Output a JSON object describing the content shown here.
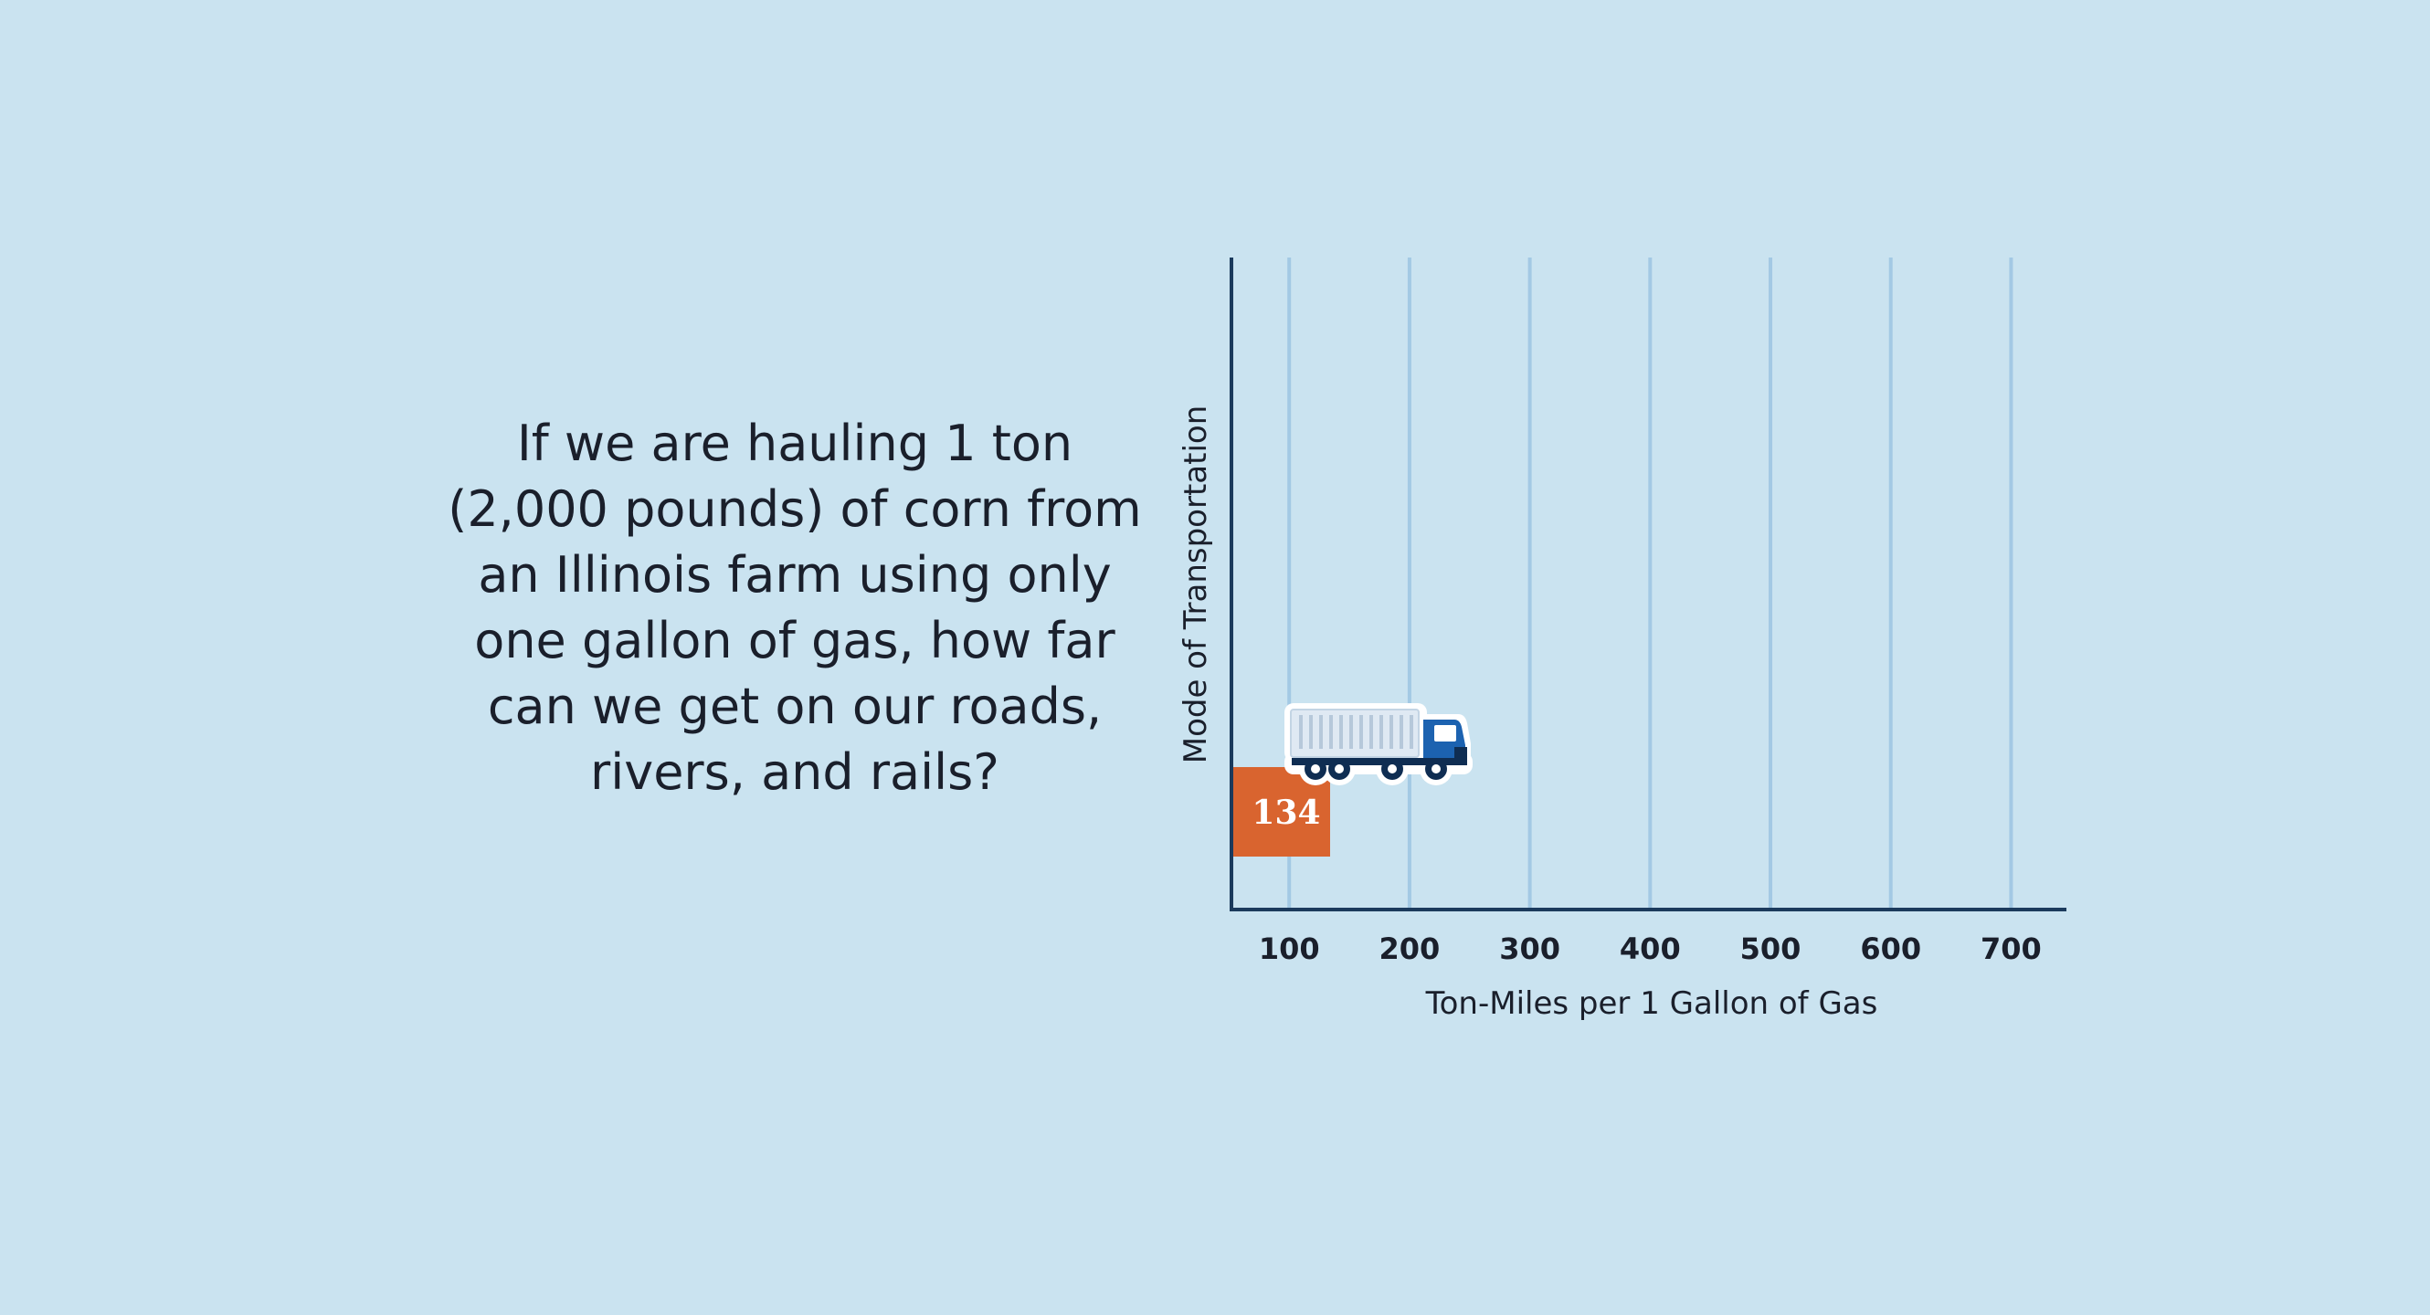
{
  "question_lines": [
    "If we are hauling 1 ton",
    "(2,000 pounds) of corn from",
    "an Illinois farm using only",
    "one gallon of gas, how far",
    "can we get on our roads,",
    "rivers, and rails?"
  ],
  "colors": {
    "background": "#cae3f0",
    "grid": "#a3c9e4",
    "axis": "#1b3a5c",
    "bar": "#d9642f",
    "bar_label": "#ffffff",
    "text": "#1a1f2b"
  },
  "chart_data": {
    "type": "bar",
    "orientation": "horizontal",
    "xlabel": "Ton-Miles per 1 Gallon of Gas",
    "ylabel": "Mode of Transportation",
    "xlim": [
      52,
      746
    ],
    "xticks": [
      100,
      200,
      300,
      400,
      500,
      600,
      700
    ],
    "grid": true,
    "bars": [
      {
        "category": "Truck",
        "value": 134,
        "label": "134",
        "icon": "truck-icon"
      }
    ]
  }
}
